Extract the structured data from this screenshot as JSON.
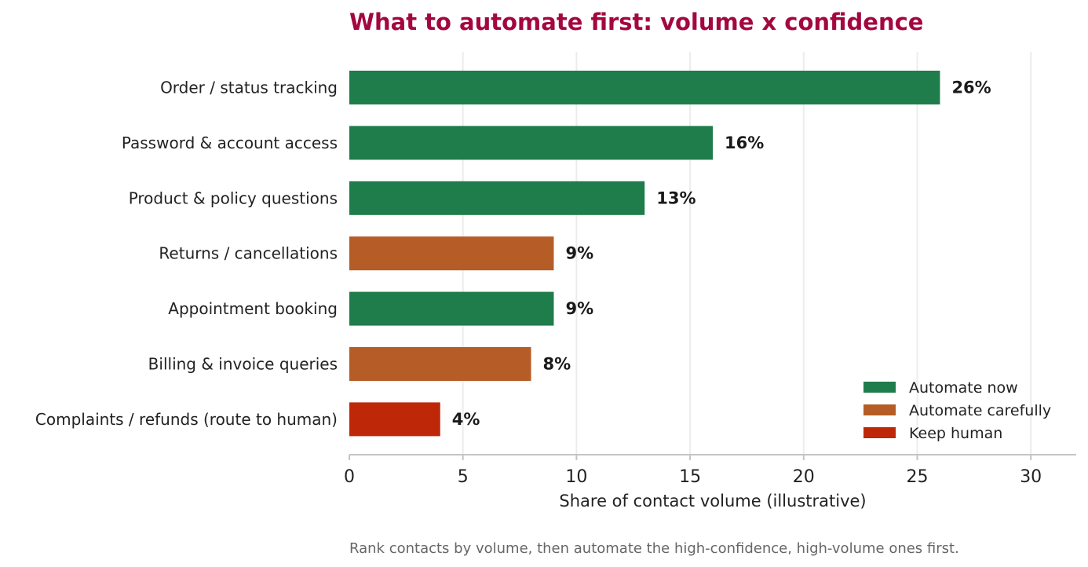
{
  "chart_data": {
    "type": "bar",
    "orientation": "horizontal",
    "title": "What to automate first: volume x confidence",
    "xlabel": "Share of contact volume (illustrative)",
    "ylabel": "",
    "footnote": "Rank contacts by volume, then automate the high-confidence, high-volume ones first.",
    "xlim": [
      0,
      32
    ],
    "xticks": [
      0,
      5,
      10,
      15,
      20,
      25,
      30
    ],
    "grid": "vertical",
    "legend_position": "bottom-right",
    "categories": [
      "Order / status tracking",
      "Password & account access",
      "Product & policy questions",
      "Returns / cancellations",
      "Appointment booking",
      "Billing & invoice queries",
      "Complaints / refunds (route to human)"
    ],
    "values": [
      26,
      16,
      13,
      9,
      9,
      8,
      4
    ],
    "data_labels": [
      "26%",
      "16%",
      "13%",
      "9%",
      "9%",
      "8%",
      "4%"
    ],
    "groups": [
      "now",
      "carefully",
      "human"
    ],
    "bar_groups": [
      "now",
      "now",
      "now",
      "carefully",
      "now",
      "carefully",
      "human"
    ],
    "legend": [
      {
        "key": "now",
        "label": "Automate now",
        "color": "#1f7c4b"
      },
      {
        "key": "carefully",
        "label": "Automate carefully",
        "color": "#b65c26"
      },
      {
        "key": "human",
        "label": "Keep human",
        "color": "#bf2709"
      }
    ],
    "title_color": "#a3073f"
  }
}
